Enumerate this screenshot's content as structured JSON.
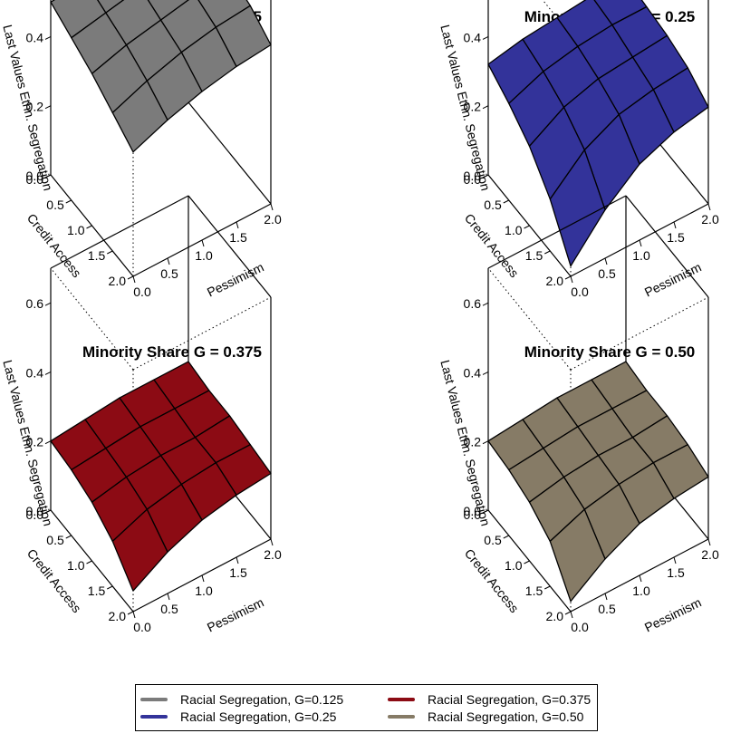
{
  "chart_data": [
    {
      "type": "surface",
      "title": "Minority Share G = 0.125",
      "xlabel": "Pessimism",
      "ylabel": "Credit Access",
      "zlabel": "Last Values Ethn. Segregation",
      "x": [
        0.0,
        0.5,
        1.0,
        1.5,
        2.0
      ],
      "y": [
        0.0,
        0.5,
        1.0,
        1.5,
        2.0
      ],
      "zlim": [
        0,
        0.7
      ],
      "x_ticks": [
        "0.0",
        "0.5",
        "1.0",
        "1.5",
        "2.0"
      ],
      "y_ticks": [
        "0.0",
        "0.5",
        "1.0",
        "1.5",
        "2.0"
      ],
      "z_ticks": [
        "0.0",
        "0.2",
        "0.4",
        "0.6"
      ],
      "color": "#7b7b7b",
      "z": [
        [
          0.5,
          0.51,
          0.52,
          0.54,
          0.55
        ],
        [
          0.47,
          0.49,
          0.51,
          0.53,
          0.53
        ],
        [
          0.44,
          0.47,
          0.49,
          0.51,
          0.52
        ],
        [
          0.4,
          0.44,
          0.47,
          0.49,
          0.5
        ],
        [
          0.36,
          0.4,
          0.43,
          0.45,
          0.46
        ]
      ]
    },
    {
      "type": "surface",
      "title": "Minority Share G = 0.25",
      "xlabel": "Pessimism",
      "ylabel": "Credit Access",
      "zlabel": "Last Values Ethn. Segregation",
      "x": [
        0.0,
        0.5,
        1.0,
        1.5,
        2.0
      ],
      "y": [
        0.0,
        0.5,
        1.0,
        1.5,
        2.0
      ],
      "zlim": [
        0,
        0.7
      ],
      "x_ticks": [
        "0.0",
        "0.5",
        "1.0",
        "1.5",
        "2.0"
      ],
      "y_ticks": [
        "0.0",
        "0.5",
        "1.0",
        "1.5",
        "2.0"
      ],
      "z_ticks": [
        "0.0",
        "0.2",
        "0.4",
        "0.6"
      ],
      "color": "#33339a",
      "z": [
        [
          0.32,
          0.34,
          0.35,
          0.36,
          0.36
        ],
        [
          0.28,
          0.32,
          0.34,
          0.35,
          0.35
        ],
        [
          0.23,
          0.29,
          0.32,
          0.33,
          0.34
        ],
        [
          0.15,
          0.24,
          0.29,
          0.31,
          0.32
        ],
        [
          0.03,
          0.14,
          0.22,
          0.26,
          0.28
        ]
      ]
    },
    {
      "type": "surface",
      "title": "Minority Share G = 0.375",
      "xlabel": "Pessimism",
      "ylabel": "Credit Access",
      "zlabel": "Last Values Ethn. Segregation",
      "x": [
        0.0,
        0.5,
        1.0,
        1.5,
        2.0
      ],
      "y": [
        0.0,
        0.5,
        1.0,
        1.5,
        2.0
      ],
      "zlim": [
        0,
        0.7
      ],
      "x_ticks": [
        "0.0",
        "0.5",
        "1.0",
        "1.5",
        "2.0"
      ],
      "y_ticks": [
        "0.0",
        "0.5",
        "1.0",
        "1.5",
        "2.0"
      ],
      "z_ticks": [
        "0.0",
        "0.2",
        "0.4",
        "0.6"
      ],
      "color": "#8c0b14",
      "z": [
        [
          0.2,
          0.21,
          0.22,
          0.22,
          0.22
        ],
        [
          0.19,
          0.2,
          0.21,
          0.21,
          0.21
        ],
        [
          0.17,
          0.19,
          0.2,
          0.2,
          0.21
        ],
        [
          0.13,
          0.17,
          0.19,
          0.2,
          0.2
        ],
        [
          0.06,
          0.12,
          0.16,
          0.18,
          0.19
        ]
      ]
    },
    {
      "type": "surface",
      "title": "Minority Share G = 0.50",
      "xlabel": "Pessimism",
      "ylabel": "Credit Access",
      "zlabel": "Last Values Ethn. Segregation",
      "x": [
        0.0,
        0.5,
        1.0,
        1.5,
        2.0
      ],
      "y": [
        0.0,
        0.5,
        1.0,
        1.5,
        2.0
      ],
      "zlim": [
        0,
        0.7
      ],
      "x_ticks": [
        "0.0",
        "0.5",
        "1.0",
        "1.5",
        "2.0"
      ],
      "y_ticks": [
        "0.0",
        "0.5",
        "1.0",
        "1.5",
        "2.0"
      ],
      "z_ticks": [
        "0.0",
        "0.2",
        "0.4",
        "0.6"
      ],
      "color": "#867b66",
      "z": [
        [
          0.2,
          0.21,
          0.22,
          0.22,
          0.22
        ],
        [
          0.19,
          0.2,
          0.21,
          0.21,
          0.21
        ],
        [
          0.17,
          0.19,
          0.2,
          0.2,
          0.21
        ],
        [
          0.13,
          0.17,
          0.19,
          0.2,
          0.2
        ],
        [
          0.03,
          0.1,
          0.15,
          0.17,
          0.18
        ]
      ]
    }
  ],
  "legend": {
    "placement": "bottom-center",
    "items": [
      {
        "label": "Racial Segregation, G=0.125",
        "color": "#7b7b7b"
      },
      {
        "label": "Racial Segregation, G=0.375",
        "color": "#8c0b14"
      },
      {
        "label": "Racial Segregation, G=0.25",
        "color": "#33339a"
      },
      {
        "label": "Racial Segregation, G=0.50",
        "color": "#867b66"
      }
    ]
  }
}
